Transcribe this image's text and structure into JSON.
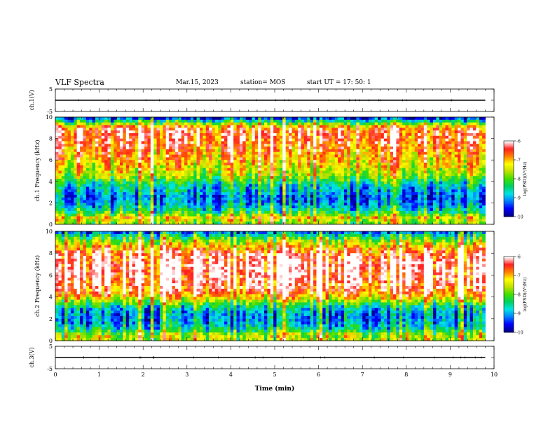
{
  "header": {
    "title": "VLF Spectra",
    "date": "Mar.15, 2023",
    "station": "station= MOS",
    "start": "start  UT  =   17: 50: 1"
  },
  "colors": {
    "colormap": [
      "#00008b",
      "#0000ff",
      "#0080ff",
      "#00e5e5",
      "#00d060",
      "#40e000",
      "#c0e000",
      "#ffff00",
      "#ff8000",
      "#ff2020",
      "#ffffff"
    ],
    "axis": "#000000"
  },
  "chart_data": [
    {
      "type": "line",
      "panel": "ch1-waveform",
      "ylabel": "ch.1(V)",
      "ylim": [
        -5,
        5
      ],
      "yticks": [
        "5",
        "-5"
      ],
      "xlim": [
        0,
        10
      ],
      "series": [
        {
          "values": [
            [
              0,
              0
            ],
            [
              9.8,
              0
            ]
          ]
        }
      ]
    },
    {
      "type": "heatmap",
      "panel": "ch1-spectrogram",
      "ylabel": "ch.1  Frequency  (kHz)",
      "ylim": [
        0,
        10
      ],
      "yticks": [
        "0",
        "2",
        "4",
        "6",
        "8",
        "10"
      ],
      "xlim": [
        0,
        10
      ],
      "data_end_min": 9.8,
      "level_by_khz": [
        {
          "khz": 0.25,
          "level": 0.55
        },
        {
          "khz": 0.6,
          "level": 0.7
        },
        {
          "khz": 1.0,
          "level": 0.45
        },
        {
          "khz": 1.5,
          "level": 0.3
        },
        {
          "khz": 2.0,
          "level": 0.2
        },
        {
          "khz": 2.5,
          "level": 0.15
        },
        {
          "khz": 3.0,
          "level": 0.25
        },
        {
          "khz": 3.5,
          "level": 0.28
        },
        {
          "khz": 4.0,
          "level": 0.4
        },
        {
          "khz": 4.5,
          "level": 0.55
        },
        {
          "khz": 5.0,
          "level": 0.62
        },
        {
          "khz": 5.5,
          "level": 0.68
        },
        {
          "khz": 6.0,
          "level": 0.72
        },
        {
          "khz": 6.5,
          "level": 0.76
        },
        {
          "khz": 7.0,
          "level": 0.8
        },
        {
          "khz": 7.5,
          "level": 0.84
        },
        {
          "khz": 8.0,
          "level": 0.86
        },
        {
          "khz": 8.5,
          "level": 0.88
        },
        {
          "khz": 9.0,
          "level": 0.82
        },
        {
          "khz": 9.5,
          "level": 0.45
        },
        {
          "khz": 9.9,
          "level": 0.1
        }
      ],
      "colorbar": {
        "label": "log(PSD)(V²/Hz)",
        "ticks": [
          "-6",
          "-7",
          "-8",
          "-9",
          "-10"
        ],
        "range": [
          -10,
          -6
        ]
      }
    },
    {
      "type": "heatmap",
      "panel": "ch2-spectrogram",
      "ylabel": "ch.2  Frequency  (kHz)",
      "ylim": [
        0,
        10
      ],
      "yticks": [
        "0",
        "2",
        "4",
        "6",
        "8",
        "10"
      ],
      "xlim": [
        0,
        10
      ],
      "data_end_min": 9.8,
      "level_by_khz": [
        {
          "khz": 0.25,
          "level": 0.6
        },
        {
          "khz": 0.6,
          "level": 0.55
        },
        {
          "khz": 1.0,
          "level": 0.35
        },
        {
          "khz": 1.5,
          "level": 0.25
        },
        {
          "khz": 2.0,
          "level": 0.2
        },
        {
          "khz": 2.5,
          "level": 0.22
        },
        {
          "khz": 3.0,
          "level": 0.3
        },
        {
          "khz": 3.5,
          "level": 0.5
        },
        {
          "khz": 4.0,
          "level": 0.72
        },
        {
          "khz": 4.5,
          "level": 0.84
        },
        {
          "khz": 5.0,
          "level": 0.9
        },
        {
          "khz": 5.5,
          "level": 0.93
        },
        {
          "khz": 6.0,
          "level": 0.95
        },
        {
          "khz": 6.5,
          "level": 0.96
        },
        {
          "khz": 7.0,
          "level": 0.96
        },
        {
          "khz": 7.5,
          "level": 0.93
        },
        {
          "khz": 8.0,
          "level": 0.88
        },
        {
          "khz": 8.5,
          "level": 0.74
        },
        {
          "khz": 9.0,
          "level": 0.6
        },
        {
          "khz": 9.5,
          "level": 0.42
        },
        {
          "khz": 9.9,
          "level": 0.18
        }
      ],
      "colorbar": {
        "label": "log(PSD)(V²/Hz)",
        "ticks": [
          "-6",
          "-7",
          "-8",
          "-9",
          "-10"
        ],
        "range": [
          -10,
          -6
        ]
      }
    },
    {
      "type": "line",
      "panel": "ch3-waveform",
      "ylabel": "ch.3(V)",
      "ylim": [
        -5,
        5
      ],
      "yticks": [
        "5",
        "-5"
      ],
      "xlim": [
        0,
        10
      ],
      "xlabel": "Time  (min)",
      "xticks": [
        "0",
        "1",
        "2",
        "3",
        "4",
        "5",
        "6",
        "7",
        "8",
        "9",
        "10"
      ],
      "series": [
        {
          "values": [
            [
              0,
              0
            ],
            [
              9.8,
              0
            ]
          ]
        }
      ]
    }
  ]
}
